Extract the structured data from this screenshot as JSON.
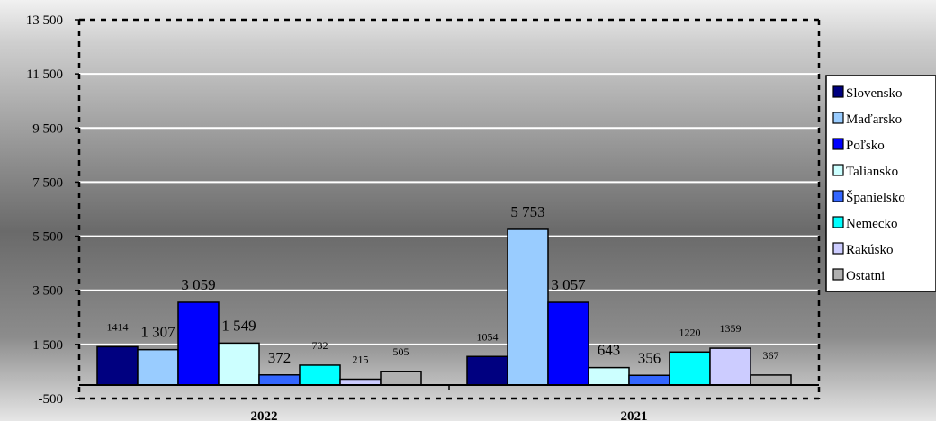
{
  "chart_data": {
    "type": "bar",
    "categories": [
      "2022",
      "2021"
    ],
    "series": [
      {
        "name": "Slovensko",
        "color": "#000080",
        "values": [
          1414,
          1054
        ],
        "labels": [
          "1414",
          "1054"
        ],
        "label_size": [
          "small",
          "small"
        ]
      },
      {
        "name": "Maďarsko",
        "color": "#99ccff",
        "values": [
          1307,
          5753
        ],
        "labels": [
          "1 307",
          "5 753"
        ],
        "label_size": [
          "big",
          "big"
        ]
      },
      {
        "name": "Poľsko",
        "color": "#0000ff",
        "values": [
          3059,
          3057
        ],
        "labels": [
          "3 059",
          "3 057"
        ],
        "label_size": [
          "big",
          "big"
        ]
      },
      {
        "name": "Taliansko",
        "color": "#ccffff",
        "values": [
          1549,
          643
        ],
        "labels": [
          "1 549",
          "643"
        ],
        "label_size": [
          "big",
          "big"
        ]
      },
      {
        "name": "Španielsko",
        "color": "#3366ff",
        "values": [
          372,
          356
        ],
        "labels": [
          "372",
          "356"
        ],
        "label_size": [
          "big",
          "big"
        ]
      },
      {
        "name": "Nemecko",
        "color": "#00ffff",
        "values": [
          732,
          1220
        ],
        "labels": [
          "732",
          "1220"
        ],
        "label_size": [
          "small",
          "small"
        ]
      },
      {
        "name": "Rakúsko",
        "color": "#ccccff",
        "values": [
          215,
          1359
        ],
        "labels": [
          "215",
          "1359"
        ],
        "label_size": [
          "small",
          "small"
        ]
      },
      {
        "name": "Ostatni",
        "color": "#b0b0b0",
        "values": [
          505,
          367
        ],
        "labels": [
          "505",
          "367"
        ],
        "label_size": [
          "small",
          "small"
        ]
      }
    ],
    "y_ticks": [
      "-500",
      "1 500",
      "3 500",
      "5 500",
      "7 500",
      "9 500",
      "11 500",
      "13 500"
    ],
    "ylim": [
      -500,
      13500
    ],
    "title": "",
    "xlabel": "",
    "ylabel": "",
    "grid": true,
    "legend_position": "right"
  }
}
